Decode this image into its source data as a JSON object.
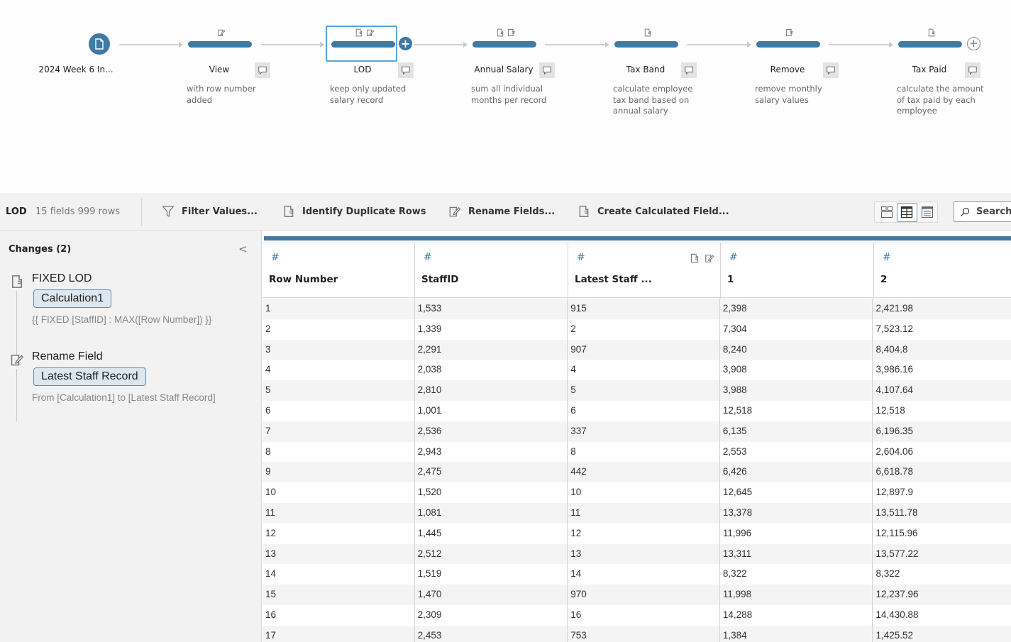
{
  "flow": {
    "input": {
      "name": "2024 Week 6 In..."
    },
    "steps": [
      {
        "name": "View",
        "description": "with row number added",
        "icons": [
          "rename-icon"
        ]
      },
      {
        "name": "LOD",
        "description": "keep only updated salary record",
        "icons": [
          "calculated-field-icon",
          "rename-icon"
        ],
        "selected": true
      },
      {
        "name": "Annual Salary",
        "description": "sum all individual months per record",
        "icons": [
          "calculated-field-icon",
          "remove-field-icon"
        ]
      },
      {
        "name": "Tax Band",
        "description": "calculate employee tax band based on annual salary",
        "icons": [
          "calculated-field-icon"
        ]
      },
      {
        "name": "Remove",
        "description": "remove monthly salary values",
        "icons": [
          "remove-field-icon"
        ]
      },
      {
        "name": "Tax Paid",
        "description": "calculate the amount of tax paid by each employee",
        "icons": [
          "calculated-field-icon"
        ]
      }
    ],
    "add_symbol": "+"
  },
  "toolbar": {
    "step_name": "LOD",
    "step_meta": "15 fields  999 rows",
    "filter_label": "Filter Values...",
    "duplicates_label": "Identify Duplicate Rows",
    "rename_label": "Rename Fields...",
    "calc_label": "Create Calculated Field...",
    "search_placeholder": "Search",
    "view_modes": [
      "card-view",
      "table-view",
      "list-view"
    ],
    "active_view": "table-view"
  },
  "changes": {
    "title": "Changes (2)",
    "collapse_symbol": "<",
    "items": [
      {
        "type": "FIXED LOD",
        "field": "Calculation1",
        "detail": "{{ FIXED [StaffID] : MAX([Row Number]) }}",
        "icon": "calculated-field-icon"
      },
      {
        "type": "Rename Field",
        "field": "Latest Staff Record",
        "detail": "From [Calculation1] to [Latest Staff Record]",
        "icon": "rename-icon"
      }
    ]
  },
  "grid": {
    "type_symbol": "#",
    "columns": [
      "Row Number",
      "StaffID",
      "Latest Staff ...",
      "1",
      "2"
    ],
    "rows": [
      [
        "1",
        "1,533",
        "915",
        "2,398",
        "2,421.98"
      ],
      [
        "2",
        "1,339",
        "2",
        "7,304",
        "7,523.12"
      ],
      [
        "3",
        "2,291",
        "907",
        "8,240",
        "8,404.8"
      ],
      [
        "4",
        "2,038",
        "4",
        "3,908",
        "3,986.16"
      ],
      [
        "5",
        "2,810",
        "5",
        "3,988",
        "4,107.64"
      ],
      [
        "6",
        "1,001",
        "6",
        "12,518",
        "12,518"
      ],
      [
        "7",
        "2,536",
        "337",
        "6,135",
        "6,196.35"
      ],
      [
        "8",
        "2,943",
        "8",
        "2,553",
        "2,604.06"
      ],
      [
        "9",
        "2,475",
        "442",
        "6,426",
        "6,618.78"
      ],
      [
        "10",
        "1,520",
        "10",
        "12,645",
        "12,897.9"
      ],
      [
        "11",
        "1,081",
        "11",
        "13,378",
        "13,511.78"
      ],
      [
        "12",
        "1,445",
        "12",
        "11,996",
        "12,115.96"
      ],
      [
        "13",
        "2,512",
        "13",
        "13,311",
        "13,577.22"
      ],
      [
        "14",
        "1,519",
        "14",
        "8,322",
        "8,322"
      ],
      [
        "15",
        "1,470",
        "970",
        "11,998",
        "12,237.96"
      ],
      [
        "16",
        "2,309",
        "16",
        "14,288",
        "14,430.88"
      ],
      [
        "17",
        "2,453",
        "753",
        "1,384",
        "1,425.52"
      ]
    ]
  },
  "colors": {
    "accent": "#3d7aa4",
    "selection": "#5aa6e0",
    "pill_bg": "#dde7ef"
  }
}
